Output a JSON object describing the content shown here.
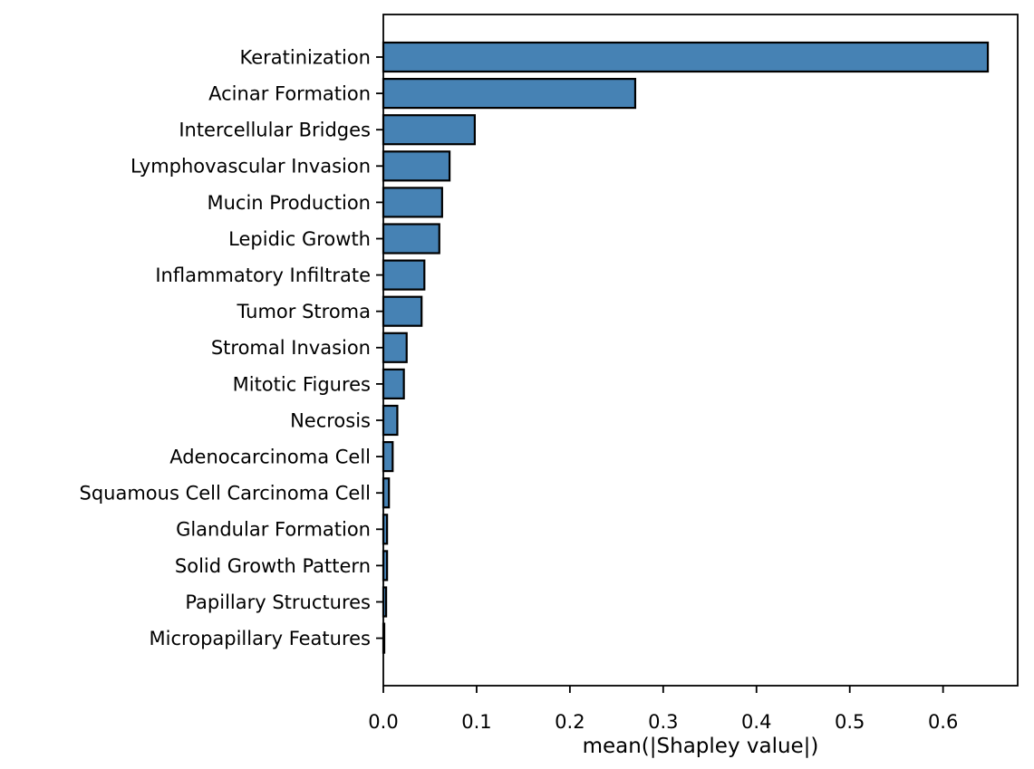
{
  "chart_data": {
    "type": "bar",
    "orientation": "horizontal",
    "title": "",
    "xlabel": "mean(|Shapley value|)",
    "ylabel": "",
    "categories": [
      "Keratinization",
      "Acinar Formation",
      "Intercellular Bridges",
      "Lymphovascular Invasion",
      "Mucin Production",
      "Lepidic Growth",
      "Inflammatory Infiltrate",
      "Tumor Stroma",
      "Stromal Invasion",
      "Mitotic Figures",
      "Necrosis",
      "Adenocarcinoma Cell",
      "Squamous Cell Carcinoma Cell",
      "Glandular Formation",
      "Solid Growth Pattern",
      "Papillary Structures",
      "Micropapillary Features"
    ],
    "values": [
      0.648,
      0.27,
      0.098,
      0.071,
      0.063,
      0.06,
      0.044,
      0.041,
      0.025,
      0.022,
      0.015,
      0.01,
      0.006,
      0.004,
      0.004,
      0.003,
      0.001
    ],
    "xlim": [
      0,
      0.68
    ],
    "xticks": {
      "values": [
        0.0,
        0.1,
        0.2,
        0.3,
        0.4,
        0.5,
        0.6
      ],
      "labels": [
        "0.0",
        "0.1",
        "0.2",
        "0.3",
        "0.4",
        "0.5",
        "0.6"
      ]
    },
    "grid": false,
    "legend": null,
    "colors": {
      "bar_fill": "#4682b4",
      "bar_edge": "#000000",
      "axis": "#000000",
      "text": "#000000",
      "background": "#ffffff"
    }
  }
}
